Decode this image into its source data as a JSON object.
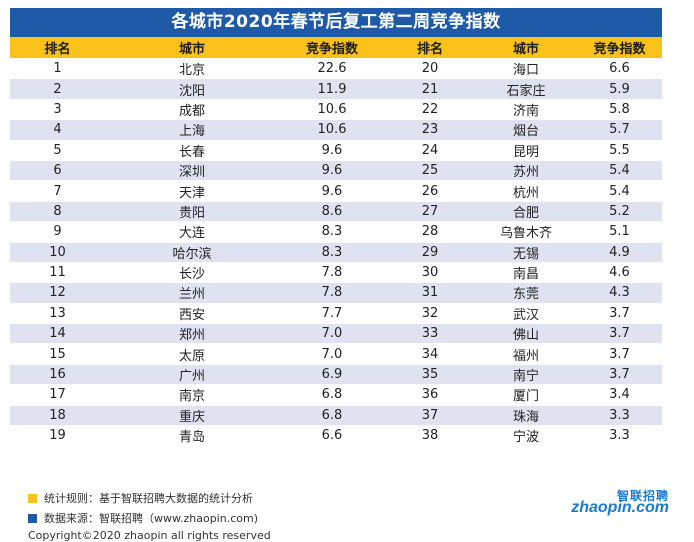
{
  "title": "各城市2020年春节后复工第二周竞争指数",
  "headers": [
    "排名",
    "城市",
    "竞争指数",
    "排名",
    "城市",
    "竞争指数"
  ],
  "rows": [
    [
      "1",
      "北京",
      "22.6",
      "20",
      "海口",
      "6.6"
    ],
    [
      "2",
      "沈阳",
      "11.9",
      "21",
      "石家庄",
      "5.9"
    ],
    [
      "3",
      "成都",
      "10.6",
      "22",
      "济南",
      "5.8"
    ],
    [
      "4",
      "上海",
      "10.6",
      "23",
      "烟台",
      "5.7"
    ],
    [
      "5",
      "长春",
      "9.6",
      "24",
      "昆明",
      "5.5"
    ],
    [
      "6",
      "深圳",
      "9.6",
      "25",
      "苏州",
      "5.4"
    ],
    [
      "7",
      "天津",
      "9.6",
      "26",
      "杭州",
      "5.4"
    ],
    [
      "8",
      "贵阳",
      "8.6",
      "27",
      "合肥",
      "5.2"
    ],
    [
      "9",
      "大连",
      "8.3",
      "28",
      "乌鲁木齐",
      "5.1"
    ],
    [
      "10",
      "哈尔滨",
      "8.3",
      "29",
      "无锡",
      "4.9"
    ],
    [
      "11",
      "长沙",
      "7.8",
      "30",
      "南昌",
      "4.6"
    ],
    [
      "12",
      "兰州",
      "7.8",
      "31",
      "东莞",
      "4.3"
    ],
    [
      "13",
      "西安",
      "7.7",
      "32",
      "武汉",
      "3.7"
    ],
    [
      "14",
      "郑州",
      "7.0",
      "33",
      "佛山",
      "3.7"
    ],
    [
      "15",
      "太原",
      "7.0",
      "34",
      "福州",
      "3.7"
    ],
    [
      "16",
      "广州",
      "6.9",
      "35",
      "南宁",
      "3.7"
    ],
    [
      "17",
      "南京",
      "6.8",
      "36",
      "厦门",
      "3.4"
    ],
    [
      "18",
      "重庆",
      "6.8",
      "37",
      "珠海",
      "3.3"
    ],
    [
      "19",
      "青岛",
      "6.6",
      "38",
      "宁波",
      "3.3"
    ]
  ],
  "notes": {
    "rule": "统计规则：基于智联招聘大数据的统计分析",
    "source": "数据来源：智联招聘（www.zhaopin.com)"
  },
  "copyright": "Copyright©2020 zhaopin all rights reserved",
  "logo": {
    "zh": "智联招聘",
    "en": "zhaopin.com"
  },
  "colors": {
    "title_bg": "#1f5aa8",
    "header_bg": "#f9c21b",
    "stripe": "#dfe3f1"
  }
}
